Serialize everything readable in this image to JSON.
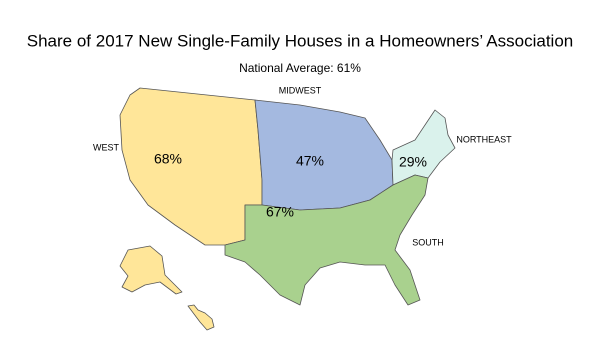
{
  "title": "Share of 2017 New Single-Family Houses in a Homeowners’ Association",
  "subtitle": "National Average: 61%",
  "regions": {
    "names": [
      "WEST",
      "MIDWEST",
      "NORTHEAST",
      "SOUTH"
    ],
    "values": [
      68,
      47,
      29,
      67
    ],
    "value_labels": [
      "68%",
      "47%",
      "29%",
      "67%"
    ],
    "colors": [
      "#ffe699",
      "#a4b9e0",
      "#daf2ec",
      "#a9d18e"
    ]
  }
}
